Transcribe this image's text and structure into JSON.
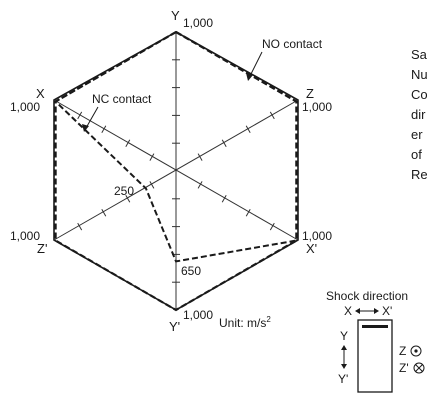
{
  "axes": {
    "y_top": "Y",
    "y_bottom": "Y'",
    "x_left": "X",
    "x_right": "X'",
    "z_right": "Z",
    "z_left": "Z'"
  },
  "values": {
    "y_top": "1,000",
    "x_left": "1,000",
    "z_right": "1,000",
    "z_left": "1,000",
    "x_right": "1,000",
    "y_bottom": "1,000",
    "nc_z_left": "250",
    "nc_y_bottom": "650"
  },
  "chart_data": {
    "type": "radar",
    "axes": [
      "Y",
      "Z",
      "X'",
      "Y'",
      "Z'",
      "X"
    ],
    "max": 1000,
    "series": [
      {
        "name": "NO contact",
        "values": [
          1000,
          1000,
          1000,
          1000,
          1000,
          1000
        ],
        "style": "dashed-bold"
      },
      {
        "name": "NC contact",
        "values": [
          1000,
          1000,
          1000,
          650,
          250,
          1000
        ],
        "style": "dashed"
      }
    ],
    "unit": "m/s²"
  },
  "legend": {
    "no_contact": "NO contact",
    "nc_contact": "NC contact"
  },
  "unit_label": "Unit: m/s",
  "unit_superscript": "2",
  "shock": {
    "title": "Shock direction",
    "x": "X",
    "x_prime": "X'",
    "y": "Y",
    "y_prime": "Y'",
    "z": "Z",
    "z_prime": "Z'"
  },
  "side_text": [
    "Sa",
    "Nu",
    "Co",
    "dir",
    "er",
    "of",
    "Re"
  ]
}
